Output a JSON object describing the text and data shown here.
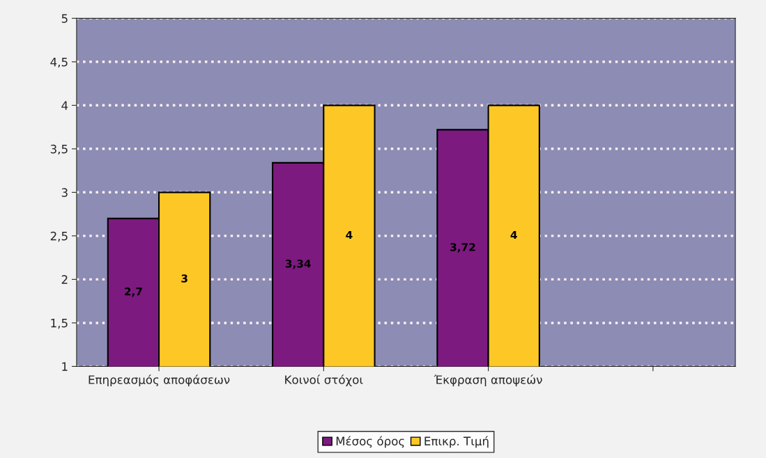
{
  "chart_data": {
    "type": "bar",
    "categories": [
      "Επηρεασμός αποφάσεων",
      "Κοινοί στόχοι",
      "Έκφραση αποψεών",
      null
    ],
    "series": [
      {
        "name": "Μέσος όρος",
        "color": "#7d1a80",
        "values": [
          2.7,
          3.34,
          3.72,
          null
        ],
        "value_labels": [
          "2,7",
          "3,34",
          "3,72",
          null
        ]
      },
      {
        "name": "Επικρ. Τιμή",
        "color": "#fdc826",
        "values": [
          3,
          4,
          4,
          null
        ],
        "value_labels": [
          "3",
          "4",
          "4",
          null
        ]
      }
    ],
    "ylim": [
      1,
      5
    ],
    "yticks": [
      1,
      {
        "value": 1.5,
        "label": "1,5"
      },
      2,
      {
        "value": 2.5,
        "label": "2,5"
      },
      3,
      {
        "value": 3.5,
        "label": "3,5"
      },
      4,
      {
        "value": 4.5,
        "label": "4,5"
      },
      5
    ],
    "grid": "y",
    "legend": "bottom",
    "line_style": "dotted"
  }
}
